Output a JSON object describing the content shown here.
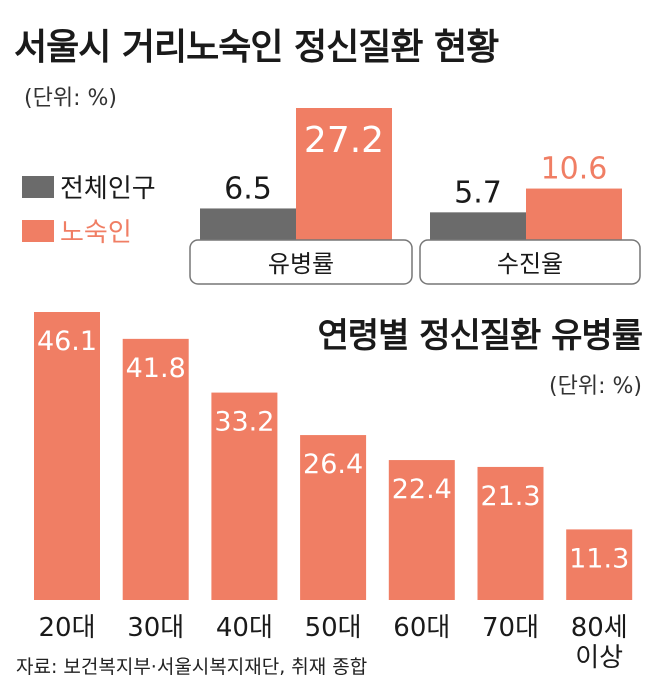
{
  "title": "서울시 거리노숙인 정신질환 현황",
  "unit": "(단위: %)",
  "colors": {
    "population": "#6b6b6b",
    "homeless": "#f07e64"
  },
  "source": "자료: 보건복지부·서울시복지재단, 취재 종합",
  "chart_data": [
    {
      "type": "bar",
      "categories": [
        "유병률",
        "수진율"
      ],
      "series": [
        {
          "name": "전체인구",
          "values": [
            6.5,
            5.7
          ]
        },
        {
          "name": "노숙인",
          "values": [
            27.2,
            10.6
          ]
        }
      ],
      "ylim": [
        0,
        30
      ]
    },
    {
      "type": "bar",
      "title": "연령별 정신질환 유병률",
      "unit": "(단위: %)",
      "categories": [
        "20대",
        "30대",
        "40대",
        "50대",
        "60대",
        "70대",
        "80세 이상"
      ],
      "values": [
        46.1,
        41.8,
        33.2,
        26.4,
        22.4,
        21.3,
        11.3
      ],
      "ylim": [
        0,
        50
      ]
    }
  ]
}
